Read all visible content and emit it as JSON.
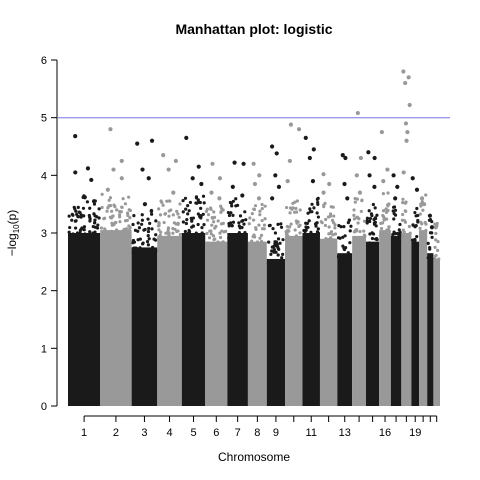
{
  "chart_data": {
    "type": "scatter",
    "title": "Manhattan plot: logistic",
    "xlabel": "Chromosome",
    "ylabel_prefix": "−log",
    "ylabel_sub": "10",
    "ylabel_suffix": "(p)",
    "ylim": [
      0,
      6
    ],
    "yticks": [
      "0",
      "1",
      "2",
      "3",
      "4",
      "5",
      "6"
    ],
    "threshold": 5,
    "threshold_color": "#9999ee",
    "colors": [
      "#1a1a1a",
      "#999999"
    ],
    "x_tick_labels": [
      "1",
      "2",
      "3",
      "4",
      "5",
      "6",
      "7",
      "8",
      "9",
      "11",
      "13",
      "16",
      "19"
    ],
    "chromosomes": [
      {
        "chr": 1,
        "start": 0,
        "end": 249,
        "base_max": 3.35,
        "high_points": [
          4.68,
          4.12,
          4.05,
          3.92,
          3.62,
          3.55
        ]
      },
      {
        "chr": 2,
        "start": 249,
        "end": 492,
        "base_max": 3.4,
        "high_points": [
          4.8,
          4.25,
          4.1,
          3.95,
          3.75
        ]
      },
      {
        "chr": 3,
        "start": 492,
        "end": 690,
        "base_max": 3.1,
        "high_points": [
          4.55,
          4.6,
          4.1,
          3.95,
          3.5
        ]
      },
      {
        "chr": 4,
        "start": 690,
        "end": 880,
        "base_max": 3.3,
        "high_points": [
          4.35,
          4.25,
          4.1,
          3.7
        ]
      },
      {
        "chr": 5,
        "start": 880,
        "end": 1061,
        "base_max": 3.35,
        "high_points": [
          4.65,
          4.15,
          3.95,
          3.85
        ]
      },
      {
        "chr": 6,
        "start": 1061,
        "end": 1232,
        "base_max": 3.2,
        "high_points": [
          4.2,
          3.95,
          3.7,
          3.6
        ]
      },
      {
        "chr": 7,
        "start": 1232,
        "end": 1391,
        "base_max": 3.35,
        "high_points": [
          4.22,
          4.2,
          3.8,
          3.65
        ]
      },
      {
        "chr": 8,
        "start": 1391,
        "end": 1537,
        "base_max": 3.2,
        "high_points": [
          4.2,
          4.0,
          3.85,
          3.6
        ]
      },
      {
        "chr": 9,
        "start": 1537,
        "end": 1678,
        "base_max": 2.9,
        "high_points": [
          4.5,
          4.38,
          4.0,
          3.8,
          3.6
        ]
      },
      {
        "chr": 10,
        "start": 1678,
        "end": 1813,
        "base_max": 3.3,
        "high_points": [
          4.88,
          4.8,
          4.25,
          3.9
        ]
      },
      {
        "chr": 11,
        "start": 1813,
        "end": 1948,
        "base_max": 3.35,
        "high_points": [
          4.65,
          4.45,
          4.3,
          3.9
        ]
      },
      {
        "chr": 12,
        "start": 1948,
        "end": 2082,
        "base_max": 3.25,
        "high_points": [
          4.02,
          3.85,
          3.7
        ]
      },
      {
        "chr": 13,
        "start": 2082,
        "end": 2197,
        "base_max": 3.0,
        "high_points": [
          4.35,
          4.3,
          3.85,
          3.6
        ]
      },
      {
        "chr": 14,
        "start": 2197,
        "end": 2304,
        "base_max": 3.3,
        "high_points": [
          5.08,
          4.3,
          4.0,
          3.7
        ]
      },
      {
        "chr": 15,
        "start": 2304,
        "end": 2406,
        "base_max": 3.2,
        "high_points": [
          4.4,
          4.3,
          4.0,
          3.8
        ]
      },
      {
        "chr": 16,
        "start": 2406,
        "end": 2496,
        "base_max": 3.4,
        "high_points": [
          4.75,
          4.1,
          3.9
        ]
      },
      {
        "chr": 17,
        "start": 2496,
        "end": 2577,
        "base_max": 3.3,
        "high_points": [
          4.0,
          3.8,
          3.6
        ]
      },
      {
        "chr": 18,
        "start": 2577,
        "end": 2655,
        "base_max": 3.35,
        "high_points": [
          5.8,
          5.7,
          5.6,
          5.22,
          4.9,
          4.75,
          4.6,
          4.05
        ]
      },
      {
        "chr": 19,
        "start": 2655,
        "end": 2714,
        "base_max": 3.2,
        "high_points": [
          3.95,
          3.75
        ]
      },
      {
        "chr": 20,
        "start": 2714,
        "end": 2777,
        "base_max": 3.4,
        "high_points": [
          3.6,
          3.5
        ]
      },
      {
        "chr": 21,
        "start": 2777,
        "end": 2825,
        "base_max": 3.0,
        "high_points": [
          3.3,
          3.1
        ]
      },
      {
        "chr": 22,
        "start": 2825,
        "end": 2876,
        "base_max": 2.9,
        "high_points": [
          3.1
        ]
      }
    ]
  }
}
